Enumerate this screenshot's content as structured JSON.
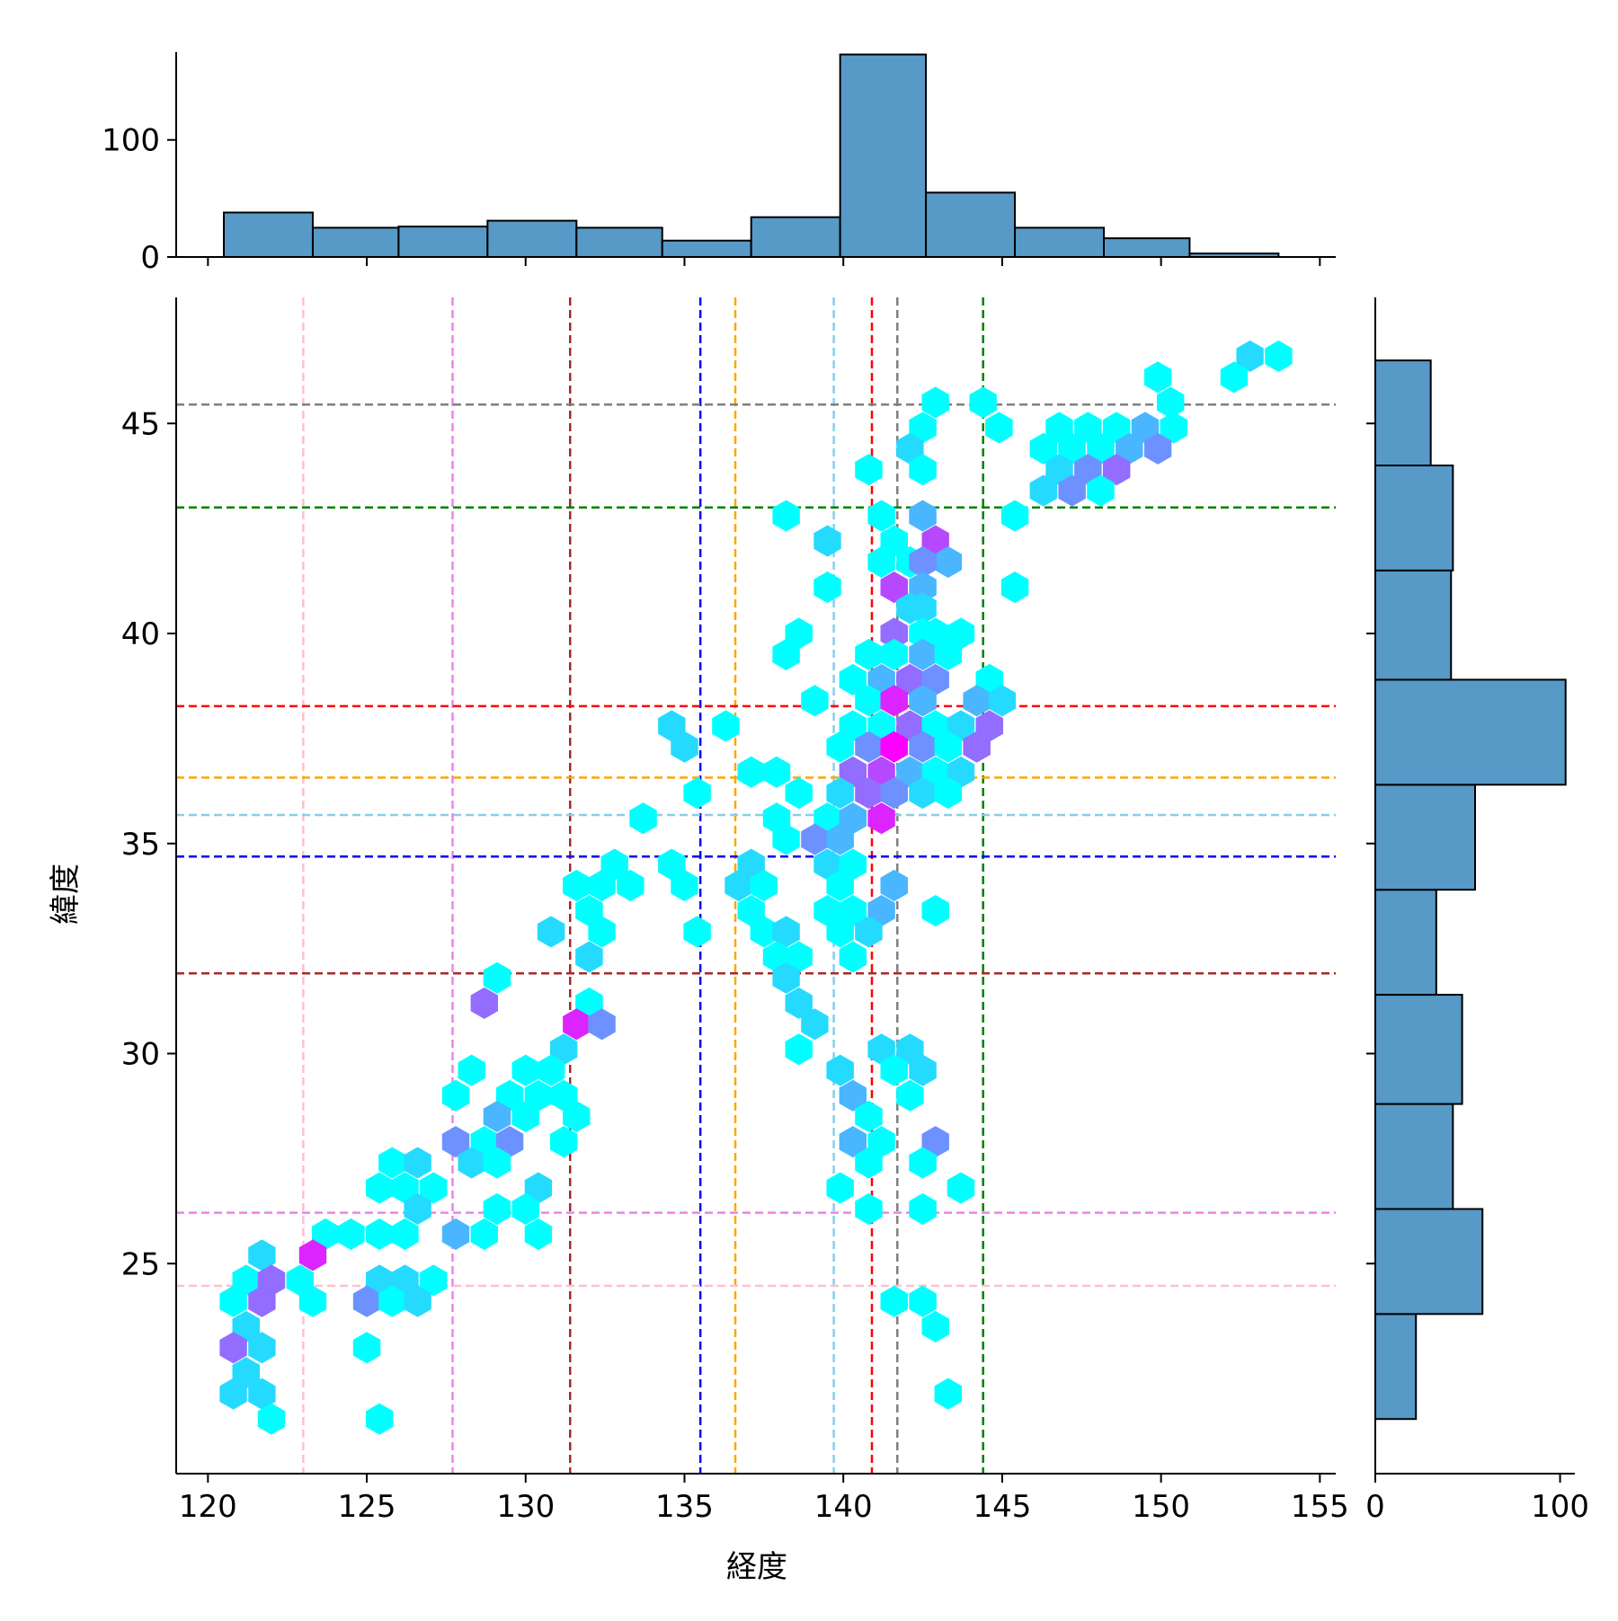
{
  "chart_data": {
    "type": "hexbin-joint",
    "title": "",
    "xlabel": "経度",
    "ylabel": "緯度",
    "xlim": [
      119,
      155.5
    ],
    "ylim": [
      20,
      48
    ],
    "x_ticks": [
      120,
      125,
      130,
      135,
      140,
      145,
      150,
      155
    ],
    "y_ticks": [
      25,
      30,
      35,
      40,
      45
    ],
    "hex_colormap": [
      "#00ffff",
      "#ff00ff"
    ],
    "hex_max_count": 8,
    "hex_cells": [
      {
        "x": 152.8,
        "y": 46.6,
        "c": 2
      },
      {
        "x": 153.7,
        "y": 46.6,
        "c": 1
      },
      {
        "x": 152.3,
        "y": 46.1,
        "c": 1
      },
      {
        "x": 149.9,
        "y": 46.1,
        "c": 1
      },
      {
        "x": 150.3,
        "y": 45.5,
        "c": 1
      },
      {
        "x": 142.9,
        "y": 45.5,
        "c": 1
      },
      {
        "x": 144.4,
        "y": 45.5,
        "c": 1
      },
      {
        "x": 142.5,
        "y": 44.9,
        "c": 1
      },
      {
        "x": 144.9,
        "y": 44.9,
        "c": 1
      },
      {
        "x": 146.8,
        "y": 44.9,
        "c": 1
      },
      {
        "x": 147.7,
        "y": 44.9,
        "c": 1
      },
      {
        "x": 148.6,
        "y": 44.9,
        "c": 1
      },
      {
        "x": 149.5,
        "y": 44.9,
        "c": 3
      },
      {
        "x": 150.4,
        "y": 44.9,
        "c": 1
      },
      {
        "x": 146.3,
        "y": 44.4,
        "c": 1
      },
      {
        "x": 147.2,
        "y": 44.4,
        "c": 1
      },
      {
        "x": 148.1,
        "y": 44.4,
        "c": 1
      },
      {
        "x": 149.0,
        "y": 44.4,
        "c": 3
      },
      {
        "x": 149.9,
        "y": 44.4,
        "c": 4
      },
      {
        "x": 142.1,
        "y": 44.4,
        "c": 2
      },
      {
        "x": 140.8,
        "y": 43.9,
        "c": 1
      },
      {
        "x": 142.5,
        "y": 43.9,
        "c": 1
      },
      {
        "x": 146.8,
        "y": 43.9,
        "c": 2
      },
      {
        "x": 147.7,
        "y": 43.9,
        "c": 4
      },
      {
        "x": 148.6,
        "y": 43.9,
        "c": 5
      },
      {
        "x": 146.3,
        "y": 43.4,
        "c": 2
      },
      {
        "x": 147.2,
        "y": 43.4,
        "c": 4
      },
      {
        "x": 148.1,
        "y": 43.4,
        "c": 1
      },
      {
        "x": 145.4,
        "y": 42.8,
        "c": 1
      },
      {
        "x": 138.2,
        "y": 42.8,
        "c": 1
      },
      {
        "x": 141.2,
        "y": 42.8,
        "c": 1
      },
      {
        "x": 142.5,
        "y": 42.8,
        "c": 3
      },
      {
        "x": 139.5,
        "y": 42.2,
        "c": 2
      },
      {
        "x": 141.6,
        "y": 42.2,
        "c": 1
      },
      {
        "x": 142.9,
        "y": 42.2,
        "c": 6
      },
      {
        "x": 141.2,
        "y": 41.7,
        "c": 1
      },
      {
        "x": 142.1,
        "y": 41.7,
        "c": 1
      },
      {
        "x": 143.3,
        "y": 41.7,
        "c": 3
      },
      {
        "x": 142.5,
        "y": 41.7,
        "c": 4
      },
      {
        "x": 139.5,
        "y": 41.1,
        "c": 1
      },
      {
        "x": 141.6,
        "y": 41.1,
        "c": 6
      },
      {
        "x": 142.5,
        "y": 41.1,
        "c": 3
      },
      {
        "x": 145.4,
        "y": 41.1,
        "c": 1
      },
      {
        "x": 142.1,
        "y": 40.6,
        "c": 2
      },
      {
        "x": 142.5,
        "y": 40.6,
        "c": 2
      },
      {
        "x": 138.6,
        "y": 40.0,
        "c": 1
      },
      {
        "x": 141.6,
        "y": 40.0,
        "c": 5
      },
      {
        "x": 142.9,
        "y": 40.0,
        "c": 1
      },
      {
        "x": 143.7,
        "y": 40.0,
        "c": 1
      },
      {
        "x": 142.5,
        "y": 40.0,
        "c": 1
      },
      {
        "x": 138.2,
        "y": 39.5,
        "c": 1
      },
      {
        "x": 140.8,
        "y": 39.5,
        "c": 1
      },
      {
        "x": 141.6,
        "y": 39.5,
        "c": 1
      },
      {
        "x": 142.5,
        "y": 39.5,
        "c": 3
      },
      {
        "x": 143.3,
        "y": 39.5,
        "c": 1
      },
      {
        "x": 140.3,
        "y": 38.9,
        "c": 1
      },
      {
        "x": 141.2,
        "y": 38.9,
        "c": 3
      },
      {
        "x": 142.1,
        "y": 38.9,
        "c": 5
      },
      {
        "x": 142.9,
        "y": 38.9,
        "c": 4
      },
      {
        "x": 144.6,
        "y": 38.9,
        "c": 1
      },
      {
        "x": 139.1,
        "y": 38.4,
        "c": 1
      },
      {
        "x": 140.8,
        "y": 38.4,
        "c": 1
      },
      {
        "x": 141.6,
        "y": 38.4,
        "c": 7
      },
      {
        "x": 142.5,
        "y": 38.4,
        "c": 3
      },
      {
        "x": 144.2,
        "y": 38.4,
        "c": 3
      },
      {
        "x": 145.0,
        "y": 38.4,
        "c": 2
      },
      {
        "x": 134.6,
        "y": 37.8,
        "c": 2
      },
      {
        "x": 136.3,
        "y": 37.8,
        "c": 1
      },
      {
        "x": 140.3,
        "y": 37.8,
        "c": 1
      },
      {
        "x": 141.2,
        "y": 37.8,
        "c": 1
      },
      {
        "x": 142.1,
        "y": 37.8,
        "c": 5
      },
      {
        "x": 142.9,
        "y": 37.8,
        "c": 1
      },
      {
        "x": 143.7,
        "y": 37.8,
        "c": 2
      },
      {
        "x": 144.6,
        "y": 37.8,
        "c": 5
      },
      {
        "x": 135.0,
        "y": 37.3,
        "c": 2
      },
      {
        "x": 139.9,
        "y": 37.3,
        "c": 1
      },
      {
        "x": 140.8,
        "y": 37.3,
        "c": 4
      },
      {
        "x": 141.6,
        "y": 37.3,
        "c": 8
      },
      {
        "x": 142.5,
        "y": 37.3,
        "c": 4
      },
      {
        "x": 143.3,
        "y": 37.3,
        "c": 1
      },
      {
        "x": 144.2,
        "y": 37.3,
        "c": 5
      },
      {
        "x": 137.1,
        "y": 36.7,
        "c": 1
      },
      {
        "x": 137.9,
        "y": 36.7,
        "c": 1
      },
      {
        "x": 140.3,
        "y": 36.7,
        "c": 5
      },
      {
        "x": 141.2,
        "y": 36.7,
        "c": 6
      },
      {
        "x": 142.1,
        "y": 36.7,
        "c": 3
      },
      {
        "x": 142.9,
        "y": 36.7,
        "c": 1
      },
      {
        "x": 143.7,
        "y": 36.7,
        "c": 2
      },
      {
        "x": 135.4,
        "y": 36.2,
        "c": 1
      },
      {
        "x": 138.6,
        "y": 36.2,
        "c": 1
      },
      {
        "x": 139.9,
        "y": 36.2,
        "c": 2
      },
      {
        "x": 140.8,
        "y": 36.2,
        "c": 5
      },
      {
        "x": 141.6,
        "y": 36.2,
        "c": 4
      },
      {
        "x": 142.5,
        "y": 36.2,
        "c": 2
      },
      {
        "x": 143.3,
        "y": 36.2,
        "c": 1
      },
      {
        "x": 133.7,
        "y": 35.6,
        "c": 1
      },
      {
        "x": 137.9,
        "y": 35.6,
        "c": 1
      },
      {
        "x": 139.5,
        "y": 35.6,
        "c": 1
      },
      {
        "x": 141.2,
        "y": 35.6,
        "c": 7
      },
      {
        "x": 140.3,
        "y": 35.6,
        "c": 3
      },
      {
        "x": 138.2,
        "y": 35.1,
        "c": 1
      },
      {
        "x": 139.1,
        "y": 35.1,
        "c": 4
      },
      {
        "x": 139.9,
        "y": 35.1,
        "c": 3
      },
      {
        "x": 132.8,
        "y": 34.5,
        "c": 1
      },
      {
        "x": 134.6,
        "y": 34.5,
        "c": 1
      },
      {
        "x": 137.1,
        "y": 34.5,
        "c": 2
      },
      {
        "x": 139.5,
        "y": 34.5,
        "c": 2
      },
      {
        "x": 140.3,
        "y": 34.5,
        "c": 1
      },
      {
        "x": 131.6,
        "y": 34.0,
        "c": 1
      },
      {
        "x": 132.4,
        "y": 34.0,
        "c": 1
      },
      {
        "x": 133.3,
        "y": 34.0,
        "c": 1
      },
      {
        "x": 135.0,
        "y": 34.0,
        "c": 1
      },
      {
        "x": 136.7,
        "y": 34.0,
        "c": 2
      },
      {
        "x": 137.5,
        "y": 34.0,
        "c": 1
      },
      {
        "x": 139.9,
        "y": 34.0,
        "c": 1
      },
      {
        "x": 141.6,
        "y": 34.0,
        "c": 3
      },
      {
        "x": 132.0,
        "y": 33.4,
        "c": 1
      },
      {
        "x": 137.1,
        "y": 33.4,
        "c": 1
      },
      {
        "x": 139.5,
        "y": 33.4,
        "c": 1
      },
      {
        "x": 140.3,
        "y": 33.4,
        "c": 1
      },
      {
        "x": 141.2,
        "y": 33.4,
        "c": 3
      },
      {
        "x": 142.9,
        "y": 33.4,
        "c": 1
      },
      {
        "x": 130.8,
        "y": 32.9,
        "c": 2
      },
      {
        "x": 132.4,
        "y": 32.9,
        "c": 1
      },
      {
        "x": 135.4,
        "y": 32.9,
        "c": 1
      },
      {
        "x": 137.5,
        "y": 32.9,
        "c": 1
      },
      {
        "x": 138.2,
        "y": 32.9,
        "c": 2
      },
      {
        "x": 139.9,
        "y": 32.9,
        "c": 1
      },
      {
        "x": 140.8,
        "y": 32.9,
        "c": 2
      },
      {
        "x": 132.0,
        "y": 32.3,
        "c": 2
      },
      {
        "x": 137.9,
        "y": 32.3,
        "c": 1
      },
      {
        "x": 138.6,
        "y": 32.3,
        "c": 1
      },
      {
        "x": 140.3,
        "y": 32.3,
        "c": 1
      },
      {
        "x": 129.1,
        "y": 31.8,
        "c": 1
      },
      {
        "x": 138.2,
        "y": 31.8,
        "c": 2
      },
      {
        "x": 128.7,
        "y": 31.2,
        "c": 5
      },
      {
        "x": 132.0,
        "y": 31.2,
        "c": 1
      },
      {
        "x": 138.6,
        "y": 31.2,
        "c": 2
      },
      {
        "x": 131.6,
        "y": 30.7,
        "c": 7
      },
      {
        "x": 132.4,
        "y": 30.7,
        "c": 4
      },
      {
        "x": 139.1,
        "y": 30.7,
        "c": 2
      },
      {
        "x": 131.2,
        "y": 30.1,
        "c": 2
      },
      {
        "x": 138.6,
        "y": 30.1,
        "c": 1
      },
      {
        "x": 141.2,
        "y": 30.1,
        "c": 2
      },
      {
        "x": 142.1,
        "y": 30.1,
        "c": 2
      },
      {
        "x": 128.3,
        "y": 29.6,
        "c": 1
      },
      {
        "x": 130.0,
        "y": 29.6,
        "c": 1
      },
      {
        "x": 130.8,
        "y": 29.6,
        "c": 1
      },
      {
        "x": 139.9,
        "y": 29.6,
        "c": 2
      },
      {
        "x": 141.6,
        "y": 29.6,
        "c": 1
      },
      {
        "x": 142.5,
        "y": 29.6,
        "c": 2
      },
      {
        "x": 127.8,
        "y": 29.0,
        "c": 1
      },
      {
        "x": 129.5,
        "y": 29.0,
        "c": 1
      },
      {
        "x": 130.4,
        "y": 29.0,
        "c": 1
      },
      {
        "x": 131.2,
        "y": 29.0,
        "c": 1
      },
      {
        "x": 140.3,
        "y": 29.0,
        "c": 3
      },
      {
        "x": 142.1,
        "y": 29.0,
        "c": 1
      },
      {
        "x": 129.1,
        "y": 28.5,
        "c": 3
      },
      {
        "x": 130.0,
        "y": 28.5,
        "c": 1
      },
      {
        "x": 131.6,
        "y": 28.5,
        "c": 1
      },
      {
        "x": 140.8,
        "y": 28.5,
        "c": 1
      },
      {
        "x": 127.8,
        "y": 27.9,
        "c": 4
      },
      {
        "x": 128.7,
        "y": 27.9,
        "c": 1
      },
      {
        "x": 129.5,
        "y": 27.9,
        "c": 4
      },
      {
        "x": 131.2,
        "y": 27.9,
        "c": 1
      },
      {
        "x": 140.3,
        "y": 27.9,
        "c": 3
      },
      {
        "x": 141.2,
        "y": 27.9,
        "c": 1
      },
      {
        "x": 142.9,
        "y": 27.9,
        "c": 4
      },
      {
        "x": 128.3,
        "y": 27.4,
        "c": 2
      },
      {
        "x": 129.1,
        "y": 27.4,
        "c": 1
      },
      {
        "x": 125.8,
        "y": 27.4,
        "c": 1
      },
      {
        "x": 126.6,
        "y": 27.4,
        "c": 2
      },
      {
        "x": 140.8,
        "y": 27.4,
        "c": 1
      },
      {
        "x": 142.5,
        "y": 27.4,
        "c": 1
      },
      {
        "x": 125.4,
        "y": 26.8,
        "c": 1
      },
      {
        "x": 126.2,
        "y": 26.8,
        "c": 1
      },
      {
        "x": 127.1,
        "y": 26.8,
        "c": 1
      },
      {
        "x": 130.4,
        "y": 26.8,
        "c": 2
      },
      {
        "x": 139.9,
        "y": 26.8,
        "c": 1
      },
      {
        "x": 143.7,
        "y": 26.8,
        "c": 1
      },
      {
        "x": 126.6,
        "y": 26.3,
        "c": 2
      },
      {
        "x": 129.1,
        "y": 26.3,
        "c": 1
      },
      {
        "x": 130.0,
        "y": 26.3,
        "c": 1
      },
      {
        "x": 140.8,
        "y": 26.3,
        "c": 1
      },
      {
        "x": 142.5,
        "y": 26.3,
        "c": 1
      },
      {
        "x": 123.7,
        "y": 25.7,
        "c": 1
      },
      {
        "x": 124.5,
        "y": 25.7,
        "c": 1
      },
      {
        "x": 125.4,
        "y": 25.7,
        "c": 1
      },
      {
        "x": 126.2,
        "y": 25.7,
        "c": 1
      },
      {
        "x": 127.8,
        "y": 25.7,
        "c": 3
      },
      {
        "x": 128.7,
        "y": 25.7,
        "c": 1
      },
      {
        "x": 130.4,
        "y": 25.7,
        "c": 1
      },
      {
        "x": 121.7,
        "y": 25.2,
        "c": 2
      },
      {
        "x": 123.3,
        "y": 25.2,
        "c": 7
      },
      {
        "x": 121.2,
        "y": 24.6,
        "c": 1
      },
      {
        "x": 122.0,
        "y": 24.6,
        "c": 5
      },
      {
        "x": 122.9,
        "y": 24.6,
        "c": 1
      },
      {
        "x": 125.4,
        "y": 24.6,
        "c": 2
      },
      {
        "x": 126.2,
        "y": 24.6,
        "c": 2
      },
      {
        "x": 127.1,
        "y": 24.6,
        "c": 1
      },
      {
        "x": 120.8,
        "y": 24.1,
        "c": 1
      },
      {
        "x": 121.7,
        "y": 24.1,
        "c": 5
      },
      {
        "x": 123.3,
        "y": 24.1,
        "c": 1
      },
      {
        "x": 125.0,
        "y": 24.1,
        "c": 4
      },
      {
        "x": 125.8,
        "y": 24.1,
        "c": 1
      },
      {
        "x": 126.6,
        "y": 24.1,
        "c": 2
      },
      {
        "x": 141.6,
        "y": 24.1,
        "c": 1
      },
      {
        "x": 142.5,
        "y": 24.1,
        "c": 1
      },
      {
        "x": 121.2,
        "y": 23.5,
        "c": 2
      },
      {
        "x": 142.9,
        "y": 23.5,
        "c": 1
      },
      {
        "x": 120.8,
        "y": 23.0,
        "c": 5
      },
      {
        "x": 121.7,
        "y": 23.0,
        "c": 2
      },
      {
        "x": 125.0,
        "y": 23.0,
        "c": 1
      },
      {
        "x": 121.2,
        "y": 22.4,
        "c": 2
      },
      {
        "x": 120.8,
        "y": 21.9,
        "c": 2
      },
      {
        "x": 121.7,
        "y": 21.9,
        "c": 2
      },
      {
        "x": 143.3,
        "y": 21.9,
        "c": 1
      },
      {
        "x": 122.0,
        "y": 21.3,
        "c": 1
      },
      {
        "x": 125.4,
        "y": 21.3,
        "c": 1
      }
    ],
    "reference_lines": {
      "vertical": [
        {
          "x": 123.0,
          "color": "#ffc0cb"
        },
        {
          "x": 127.7,
          "color": "#ee82ee"
        },
        {
          "x": 131.4,
          "color": "#a52a2a"
        },
        {
          "x": 135.5,
          "color": "#0000ff"
        },
        {
          "x": 136.6,
          "color": "#ffa500"
        },
        {
          "x": 139.7,
          "color": "#87ceeb"
        },
        {
          "x": 140.9,
          "color": "#ff0000"
        },
        {
          "x": 141.7,
          "color": "#808080"
        },
        {
          "x": 144.4,
          "color": "#008000"
        }
      ],
      "horizontal": [
        {
          "y": 45.45,
          "color": "#808080"
        },
        {
          "y": 43.0,
          "color": "#008000"
        },
        {
          "y": 38.27,
          "color": "#ff0000"
        },
        {
          "y": 36.57,
          "color": "#ffa500"
        },
        {
          "y": 35.68,
          "color": "#87ceeb"
        },
        {
          "y": 34.69,
          "color": "#0000ff"
        },
        {
          "y": 31.91,
          "color": "#a52a2a"
        },
        {
          "y": 26.21,
          "color": "#ee82ee"
        },
        {
          "y": 24.47,
          "color": "#ffc0cb"
        }
      ]
    },
    "top_histogram": {
      "ylim": [
        0,
        175
      ],
      "y_ticks": [
        0,
        100
      ],
      "bar_color": "#5799c7",
      "bins": [
        {
          "x0": 120.5,
          "x1": 123.3,
          "count": 38
        },
        {
          "x0": 123.3,
          "x1": 126.0,
          "count": 25
        },
        {
          "x0": 126.0,
          "x1": 128.8,
          "count": 26
        },
        {
          "x0": 128.8,
          "x1": 131.6,
          "count": 31
        },
        {
          "x0": 131.6,
          "x1": 134.3,
          "count": 25
        },
        {
          "x0": 134.3,
          "x1": 137.1,
          "count": 14
        },
        {
          "x0": 137.1,
          "x1": 139.9,
          "count": 34
        },
        {
          "x0": 139.9,
          "x1": 142.6,
          "count": 173
        },
        {
          "x0": 142.6,
          "x1": 145.4,
          "count": 55
        },
        {
          "x0": 145.4,
          "x1": 148.2,
          "count": 25
        },
        {
          "x0": 148.2,
          "x1": 150.9,
          "count": 16
        },
        {
          "x0": 150.9,
          "x1": 153.7,
          "count": 3
        }
      ]
    },
    "right_histogram": {
      "xlim": [
        0,
        108
      ],
      "x_ticks": [
        0,
        100
      ],
      "bar_color": "#5799c7",
      "bins": [
        {
          "y0": 21.3,
          "y1": 23.8,
          "count": 22
        },
        {
          "y0": 23.8,
          "y1": 26.3,
          "count": 58
        },
        {
          "y0": 26.3,
          "y1": 28.8,
          "count": 42
        },
        {
          "y0": 28.8,
          "y1": 31.4,
          "count": 47
        },
        {
          "y0": 31.4,
          "y1": 33.9,
          "count": 33
        },
        {
          "y0": 33.9,
          "y1": 36.4,
          "count": 54
        },
        {
          "y0": 36.4,
          "y1": 38.9,
          "count": 103
        },
        {
          "y0": 38.9,
          "y1": 41.5,
          "count": 41
        },
        {
          "y0": 41.5,
          "y1": 44.0,
          "count": 42
        },
        {
          "y0": 44.0,
          "y1": 46.5,
          "count": 30
        }
      ]
    }
  }
}
